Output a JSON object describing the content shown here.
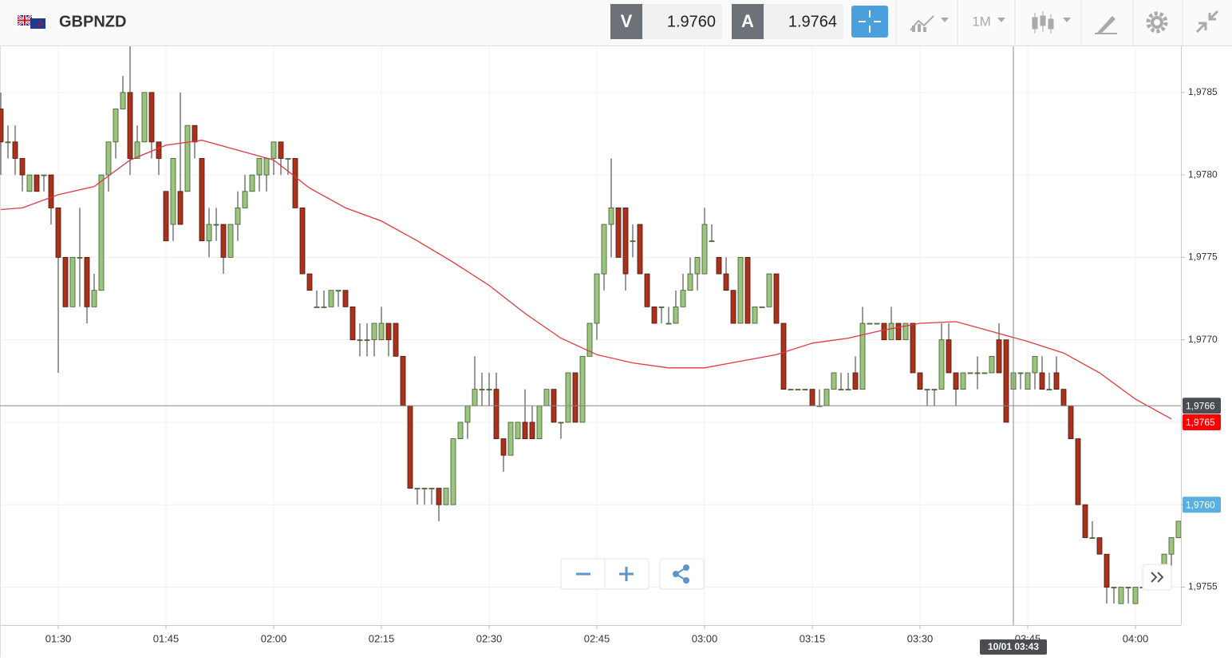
{
  "header": {
    "symbol": "GBPNZD",
    "sell_label": "V",
    "sell_price": "1.9760",
    "buy_label": "A",
    "buy_price": "1.9764",
    "timeframe": "1M"
  },
  "chart_data": {
    "type": "candlestick",
    "x": [
      "01:22",
      "01:23",
      "01:24",
      "01:25",
      "01:26",
      "01:27",
      "01:28",
      "01:29",
      "01:30",
      "01:31",
      "01:32",
      "01:33",
      "01:34",
      "01:35",
      "01:36",
      "01:37",
      "01:38",
      "01:39",
      "01:40",
      "01:41",
      "01:42",
      "01:43",
      "01:44",
      "01:45",
      "01:46",
      "01:47",
      "01:48",
      "01:49",
      "01:50",
      "01:51",
      "01:52",
      "01:53",
      "01:54",
      "01:55",
      "01:56",
      "01:57",
      "01:58",
      "01:59",
      "02:00",
      "02:01",
      "02:02",
      "02:03",
      "02:04",
      "02:05",
      "02:06",
      "02:07",
      "02:08",
      "02:09",
      "02:10",
      "02:11",
      "02:12",
      "02:13",
      "02:14",
      "02:15",
      "02:16",
      "02:17",
      "02:18",
      "02:19",
      "02:20",
      "02:21",
      "02:22",
      "02:23",
      "02:24",
      "02:25",
      "02:26",
      "02:27",
      "02:28",
      "02:29",
      "02:30",
      "02:31",
      "02:32",
      "02:33",
      "02:34",
      "02:35",
      "02:36",
      "02:37",
      "02:38",
      "02:39",
      "02:40",
      "02:41",
      "02:42",
      "02:43",
      "02:44",
      "02:45",
      "02:46",
      "02:47",
      "02:48",
      "02:49",
      "02:50",
      "02:51",
      "02:52",
      "02:53",
      "02:54",
      "02:55",
      "02:56",
      "02:57",
      "02:58",
      "02:59",
      "03:00",
      "03:01",
      "03:02",
      "03:03",
      "03:04",
      "03:05",
      "03:06",
      "03:07",
      "03:08",
      "03:09",
      "03:10",
      "03:11",
      "03:12",
      "03:13",
      "03:14",
      "03:15",
      "03:16",
      "03:17",
      "03:18",
      "03:19",
      "03:20",
      "03:21",
      "03:22",
      "03:23",
      "03:24",
      "03:25",
      "03:26",
      "03:27",
      "03:28",
      "03:29",
      "03:30",
      "03:31",
      "03:32",
      "03:33",
      "03:34",
      "03:35",
      "03:36",
      "03:37",
      "03:38",
      "03:39",
      "03:40",
      "03:41",
      "03:42",
      "03:43",
      "03:44",
      "03:45",
      "03:46",
      "03:47",
      "03:48",
      "03:49",
      "03:50",
      "03:51",
      "03:52",
      "03:53",
      "03:54",
      "03:55",
      "03:56",
      "03:57",
      "03:58",
      "03:59",
      "04:00",
      "04:01",
      "04:02",
      "04:03",
      "04:04",
      "04:05",
      "04:06"
    ],
    "open": [
      1.9784,
      1.9782,
      1.9782,
      1.9781,
      1.9779,
      1.978,
      1.978,
      1.978,
      1.9778,
      1.9775,
      1.9772,
      1.9775,
      1.9775,
      1.9772,
      1.9773,
      1.978,
      1.9782,
      1.9784,
      1.9785,
      1.9781,
      1.9782,
      1.9785,
      1.9782,
      1.9779,
      1.9777,
      1.9779,
      1.9779,
      1.9783,
      1.9781,
      1.9776,
      1.9777,
      1.9777,
      1.9775,
      1.9777,
      1.9778,
      1.9779,
      1.978,
      1.978,
      1.9781,
      1.9782,
      1.9781,
      1.9781,
      1.9778,
      1.9774,
      1.9772,
      1.9772,
      1.9772,
      1.9773,
      1.9773,
      1.9772,
      1.977,
      1.977,
      1.977,
      1.977,
      1.9771,
      1.9771,
      1.9769,
      1.9766,
      1.9761,
      1.9761,
      1.9761,
      1.9761,
      1.976,
      1.976,
      1.9764,
      1.9765,
      1.9766,
      1.9767,
      1.9767,
      1.9767,
      1.9764,
      1.9763,
      1.9764,
      1.9765,
      1.9765,
      1.9764,
      1.9766,
      1.9767,
      1.9765,
      1.9765,
      1.9768,
      1.9765,
      1.9769,
      1.9771,
      1.9774,
      1.9777,
      1.9778,
      1.9778,
      1.9776,
      1.9777,
      1.9774,
      1.9772,
      1.9772,
      1.9771,
      1.9771,
      1.9772,
      1.9773,
      1.9774,
      1.9774,
      1.9776,
      1.9775,
      1.9774,
      1.9773,
      1.9771,
      1.9775,
      1.9771,
      1.9772,
      1.9772,
      1.9774,
      1.9771,
      1.9767,
      1.9767,
      1.9767,
      1.9767,
      1.9766,
      1.9766,
      1.9767,
      1.9767,
      1.9767,
      1.9768,
      1.9767,
      1.9771,
      1.9771,
      1.9771,
      1.977,
      1.9771,
      1.977,
      1.9771,
      1.9768,
      1.9767,
      1.9767,
      1.9767,
      1.977,
      1.9768,
      1.9767,
      1.9768,
      1.9768,
      1.9768,
      1.9768,
      1.977,
      1.977,
      1.9767,
      1.9768,
      1.9767,
      1.9768,
      1.9768,
      1.9767,
      1.9768,
      1.9767,
      1.9766,
      1.9764,
      1.976,
      1.9758,
      1.9758,
      1.9757,
      1.9755,
      1.9754,
      1.9755,
      1.9754,
      1.9755,
      1.9755,
      1.9756,
      1.9756,
      1.9757,
      1.9758
    ],
    "high": [
      1.9785,
      1.9783,
      1.9783,
      1.9781,
      1.978,
      1.978,
      1.978,
      1.978,
      1.9778,
      1.9775,
      1.9775,
      1.9778,
      1.9775,
      1.9774,
      1.978,
      1.9782,
      1.9784,
      1.9786,
      1.9789,
      1.9783,
      1.9785,
      1.9785,
      1.9782,
      1.9779,
      1.9781,
      1.9785,
      1.9783,
      1.9783,
      1.9781,
      1.9778,
      1.9778,
      1.9777,
      1.9777,
      1.9779,
      1.978,
      1.978,
      1.9781,
      1.9781,
      1.9782,
      1.9782,
      1.9781,
      1.9781,
      1.9778,
      1.9774,
      1.9773,
      1.9773,
      1.9773,
      1.9773,
      1.9773,
      1.9772,
      1.9771,
      1.9771,
      1.9771,
      1.9772,
      1.9771,
      1.9771,
      1.9769,
      1.9766,
      1.9761,
      1.9761,
      1.9761,
      1.9761,
      1.9761,
      1.9764,
      1.9765,
      1.9766,
      1.9769,
      1.9768,
      1.9768,
      1.9768,
      1.9764,
      1.9765,
      1.9765,
      1.9767,
      1.9766,
      1.9766,
      1.9767,
      1.9767,
      1.9765,
      1.9768,
      1.9768,
      1.9769,
      1.9771,
      1.9774,
      1.9777,
      1.9781,
      1.9778,
      1.9778,
      1.9777,
      1.9777,
      1.9774,
      1.9772,
      1.9772,
      1.9772,
      1.9773,
      1.9774,
      1.9775,
      1.9775,
      1.9778,
      1.9777,
      1.9775,
      1.9775,
      1.9773,
      1.9775,
      1.9775,
      1.9772,
      1.9772,
      1.9774,
      1.9774,
      1.9771,
      1.9767,
      1.9767,
      1.9767,
      1.9767,
      1.9767,
      1.9767,
      1.9768,
      1.9768,
      1.9768,
      1.9769,
      1.9772,
      1.9771,
      1.9771,
      1.9771,
      1.9772,
      1.9771,
      1.9771,
      1.9771,
      1.9768,
      1.9767,
      1.9767,
      1.9771,
      1.9771,
      1.9768,
      1.9768,
      1.9768,
      1.9769,
      1.9768,
      1.9769,
      1.9771,
      1.977,
      1.9768,
      1.9768,
      1.9768,
      1.9769,
      1.9769,
      1.9768,
      1.9769,
      1.9767,
      1.9766,
      1.9764,
      1.976,
      1.9759,
      1.9758,
      1.9757,
      1.9755,
      1.9755,
      1.9755,
      1.9755,
      1.9756,
      1.9756,
      1.9756,
      1.9757,
      1.9758,
      1.9759
    ],
    "low": [
      1.978,
      1.9781,
      1.978,
      1.9779,
      1.9779,
      1.9779,
      1.9779,
      1.9777,
      1.9768,
      1.9772,
      1.9772,
      1.9772,
      1.9771,
      1.9772,
      1.9773,
      1.9779,
      1.9781,
      1.9784,
      1.978,
      1.9781,
      1.9782,
      1.9781,
      1.978,
      1.9776,
      1.9776,
      1.9777,
      1.9779,
      1.9781,
      1.9776,
      1.9775,
      1.9776,
      1.9774,
      1.9775,
      1.9776,
      1.9778,
      1.9779,
      1.9779,
      1.9779,
      1.978,
      1.978,
      1.978,
      1.9778,
      1.9774,
      1.9773,
      1.9772,
      1.9772,
      1.9772,
      1.9772,
      1.9772,
      1.977,
      1.9769,
      1.9769,
      1.9769,
      1.977,
      1.9769,
      1.9769,
      1.9766,
      1.9761,
      1.976,
      1.976,
      1.976,
      1.9759,
      1.976,
      1.976,
      1.9764,
      1.9764,
      1.9766,
      1.9766,
      1.9766,
      1.9764,
      1.9762,
      1.9763,
      1.9764,
      1.9764,
      1.9764,
      1.9764,
      1.9766,
      1.9765,
      1.9764,
      1.9765,
      1.9765,
      1.9765,
      1.9769,
      1.977,
      1.9773,
      1.9775,
      1.9775,
      1.9773,
      1.9775,
      1.9774,
      1.9772,
      1.9771,
      1.9771,
      1.9771,
      1.9771,
      1.9772,
      1.9773,
      1.9773,
      1.9774,
      1.9776,
      1.9774,
      1.9773,
      1.9771,
      1.9771,
      1.9771,
      1.9771,
      1.9772,
      1.9772,
      1.9771,
      1.9767,
      1.9767,
      1.9767,
      1.9767,
      1.9766,
      1.9766,
      1.9766,
      1.9767,
      1.9767,
      1.9767,
      1.9767,
      1.9767,
      1.9771,
      1.9771,
      1.977,
      1.977,
      1.977,
      1.977,
      1.9768,
      1.9767,
      1.9766,
      1.9766,
      1.9767,
      1.9768,
      1.9766,
      1.9767,
      1.9768,
      1.9767,
      1.9768,
      1.9768,
      1.9768,
      1.9765,
      1.9767,
      1.9767,
      1.9767,
      1.9767,
      1.9767,
      1.9767,
      1.9767,
      1.9766,
      1.9764,
      1.976,
      1.9758,
      1.9758,
      1.9757,
      1.9754,
      1.9754,
      1.9754,
      1.9754,
      1.9754,
      1.9755,
      1.9755,
      1.9755,
      1.9755,
      1.9756,
      1.9758
    ],
    "close": [
      1.9782,
      1.9782,
      1.9781,
      1.978,
      1.978,
      1.9779,
      1.978,
      1.9778,
      1.9775,
      1.9772,
      1.9775,
      1.9775,
      1.9772,
      1.9773,
      1.978,
      1.9782,
      1.9784,
      1.9785,
      1.9781,
      1.9782,
      1.9785,
      1.9782,
      1.9781,
      1.9776,
      1.9781,
      1.9777,
      1.9783,
      1.9782,
      1.9776,
      1.9777,
      1.9777,
      1.9775,
      1.9777,
      1.9778,
      1.9779,
      1.978,
      1.9781,
      1.9781,
      1.9782,
      1.9781,
      1.9781,
      1.9778,
      1.9774,
      1.9773,
      1.9772,
      1.9772,
      1.9773,
      1.9773,
      1.9772,
      1.977,
      1.977,
      1.977,
      1.9771,
      1.9771,
      1.977,
      1.9769,
      1.9766,
      1.9761,
      1.9761,
      1.9761,
      1.9761,
      1.976,
      1.9761,
      1.9764,
      1.9765,
      1.9766,
      1.9767,
      1.9767,
      1.9767,
      1.9764,
      1.9763,
      1.9765,
      1.9765,
      1.9764,
      1.9764,
      1.9766,
      1.9767,
      1.9765,
      1.9765,
      1.9768,
      1.9765,
      1.9769,
      1.9771,
      1.9774,
      1.9777,
      1.9778,
      1.9775,
      1.9774,
      1.9776,
      1.9774,
      1.9772,
      1.9771,
      1.9772,
      1.9771,
      1.9772,
      1.9773,
      1.9774,
      1.9775,
      1.9777,
      1.9776,
      1.9774,
      1.9773,
      1.9771,
      1.9775,
      1.9771,
      1.9772,
      1.9772,
      1.9774,
      1.9771,
      1.9767,
      1.9767,
      1.9767,
      1.9767,
      1.9766,
      1.9766,
      1.9767,
      1.9768,
      1.9767,
      1.9767,
      1.9767,
      1.9771,
      1.9771,
      1.9771,
      1.977,
      1.9771,
      1.977,
      1.9771,
      1.9768,
      1.9767,
      1.9767,
      1.9767,
      1.977,
      1.9768,
      1.9767,
      1.9768,
      1.9768,
      1.9768,
      1.9768,
      1.9769,
      1.9768,
      1.9765,
      1.9768,
      1.9768,
      1.9768,
      1.9769,
      1.9767,
      1.9767,
      1.9767,
      1.9766,
      1.9764,
      1.976,
      1.9758,
      1.9758,
      1.9757,
      1.9755,
      1.9755,
      1.9755,
      1.9755,
      1.9755,
      1.9755,
      1.9756,
      1.9756,
      1.9757,
      1.9758,
      1.9759
    ],
    "up_color": "#9cc47f",
    "down_color": "#a8321b",
    "overlay": {
      "type": "line",
      "color": "#e0393e",
      "x": [
        "01:22",
        "01:25",
        "01:30",
        "01:35",
        "01:40",
        "01:45",
        "01:50",
        "01:55",
        "02:00",
        "02:05",
        "02:10",
        "02:15",
        "02:20",
        "02:25",
        "02:30",
        "02:35",
        "02:40",
        "02:45",
        "02:50",
        "02:55",
        "03:00",
        "03:05",
        "03:10",
        "03:15",
        "03:20",
        "03:25",
        "03:30",
        "03:35",
        "03:40",
        "03:45",
        "03:50",
        "03:55",
        "04:00",
        "04:05"
      ],
      "values": [
        1.97779,
        1.9778,
        1.97788,
        1.97793,
        1.97809,
        1.97818,
        1.97821,
        1.97815,
        1.97809,
        1.97792,
        1.9778,
        1.97772,
        1.9776,
        1.97747,
        1.97733,
        1.97716,
        1.97701,
        1.97691,
        1.97686,
        1.97683,
        1.97683,
        1.97687,
        1.97691,
        1.97698,
        1.97701,
        1.97706,
        1.9771,
        1.97711,
        1.97705,
        1.97699,
        1.97692,
        1.9768,
        1.97664,
        1.97652
      ]
    },
    "xlim": [
      "01:22",
      "04:06"
    ],
    "xticks": [
      "01:30",
      "01:45",
      "02:00",
      "02:15",
      "02:30",
      "02:45",
      "03:00",
      "03:15",
      "03:30",
      "03:45",
      "04:00"
    ],
    "ylim": [
      1.97527,
      1.97878
    ],
    "yticks": [
      {
        "value": 1.9755,
        "label": "1,9755"
      },
      {
        "value": 1.976,
        "label": "1,9760"
      },
      {
        "value": 1.9765,
        "label": "1,9765"
      },
      {
        "value": 1.977,
        "label": "1,9770"
      },
      {
        "value": 1.9775,
        "label": "1,9775"
      },
      {
        "value": 1.978,
        "label": "1,9780"
      },
      {
        "value": 1.9785,
        "label": "1,9785"
      }
    ],
    "grid": true,
    "price_line": {
      "value": 1.9766,
      "label": "1,9766"
    },
    "crosshair_x": {
      "value": "03:43",
      "label": "10/01 03:43"
    },
    "markers": [
      {
        "value": 1.9765,
        "label": "1,9765",
        "color": "#ff0000"
      },
      {
        "value": 1.976,
        "label": "1,9760",
        "color": "#5aaee0"
      }
    ]
  }
}
